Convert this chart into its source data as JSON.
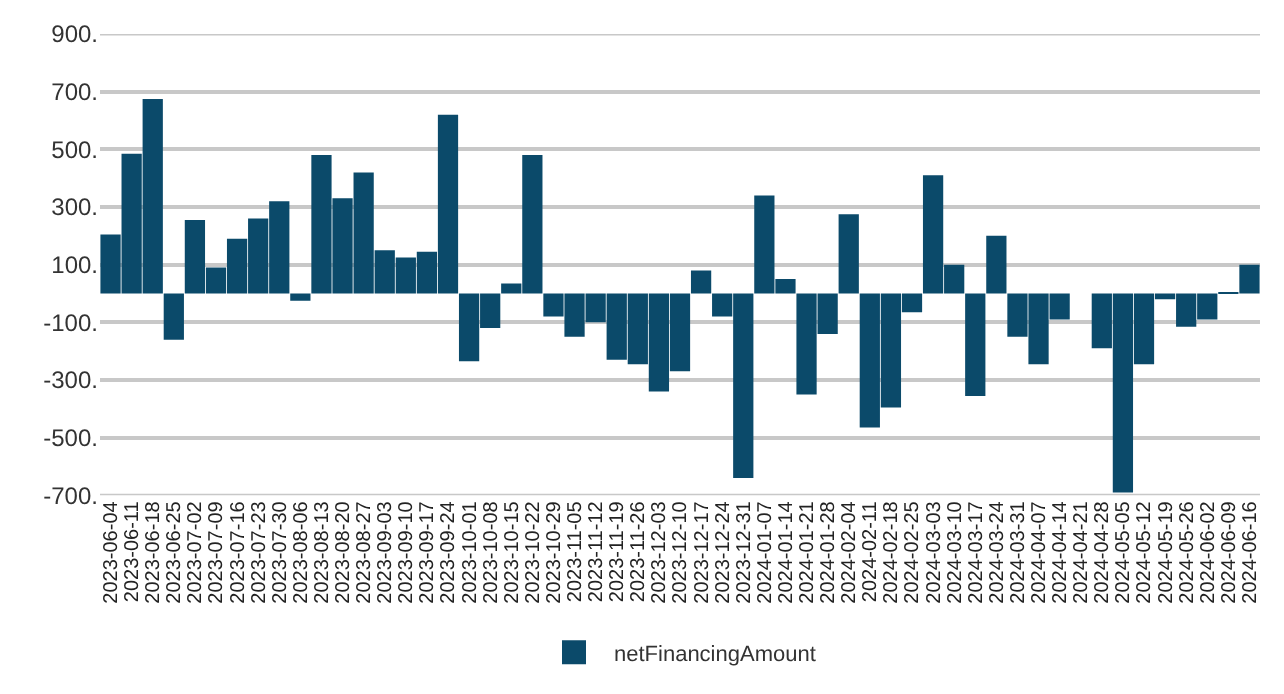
{
  "chart_data": {
    "type": "bar",
    "categories": [
      "2023-06-04",
      "2023-06-11",
      "2023-06-18",
      "2023-06-25",
      "2023-07-02",
      "2023-07-09",
      "2023-07-16",
      "2023-07-23",
      "2023-07-30",
      "2023-08-06",
      "2023-08-13",
      "2023-08-20",
      "2023-08-27",
      "2023-09-03",
      "2023-09-10",
      "2023-09-17",
      "2023-09-24",
      "2023-10-01",
      "2023-10-08",
      "2023-10-15",
      "2023-10-22",
      "2023-10-29",
      "2023-11-05",
      "2023-11-12",
      "2023-11-19",
      "2023-11-26",
      "2023-12-03",
      "2023-12-10",
      "2023-12-17",
      "2023-12-24",
      "2023-12-31",
      "2024-01-07",
      "2024-01-14",
      "2024-01-21",
      "2024-01-28",
      "2024-02-04",
      "2024-02-11",
      "2024-02-18",
      "2024-02-25",
      "2024-03-03",
      "2024-03-10",
      "2024-03-17",
      "2024-03-24",
      "2024-03-31",
      "2024-04-07",
      "2024-04-14",
      "2024-04-21",
      "2024-04-28",
      "2024-05-05",
      "2024-05-12",
      "2024-05-19",
      "2024-05-26",
      "2024-06-02",
      "2024-06-09",
      "2024-06-16"
    ],
    "series": [
      {
        "name": "netFinancingAmount",
        "color": "#0b4a6a",
        "values": [
          205,
          485,
          675,
          -160,
          255,
          90,
          190,
          260,
          320,
          -25,
          480,
          330,
          420,
          150,
          125,
          145,
          620,
          -235,
          -120,
          35,
          480,
          -80,
          -150,
          -100,
          -230,
          -245,
          -340,
          -270,
          80,
          -80,
          -640,
          340,
          50,
          -350,
          -140,
          275,
          -465,
          -395,
          -65,
          410,
          100,
          -355,
          200,
          -150,
          -245,
          -90,
          null,
          -190,
          -690,
          -245,
          -20,
          -115,
          -90,
          5,
          100
        ]
      }
    ],
    "ylim": [
      -700,
      900
    ],
    "yticks": [
      {
        "value": -700,
        "label": "-700."
      },
      {
        "value": -500,
        "label": "-500."
      },
      {
        "value": -300,
        "label": "-300."
      },
      {
        "value": -100,
        "label": "-100."
      },
      {
        "value": 100,
        "label": "100."
      },
      {
        "value": 300,
        "label": "300."
      },
      {
        "value": 500,
        "label": "500."
      },
      {
        "value": 700,
        "label": "700."
      },
      {
        "value": 900,
        "label": "900."
      }
    ],
    "grid": "y",
    "legend": "bottom"
  }
}
